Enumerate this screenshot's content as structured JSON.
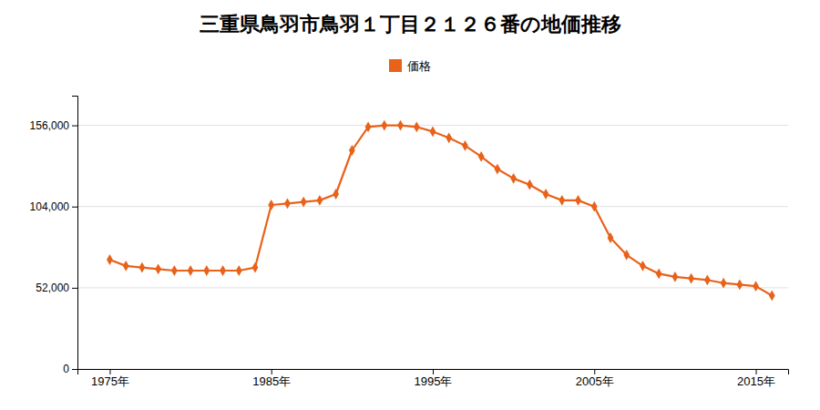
{
  "chart_data": {
    "type": "line",
    "title": "三重県鳥羽市鳥羽１丁目２１２６番の地価推移",
    "x": [
      1975,
      1976,
      1977,
      1978,
      1979,
      1980,
      1981,
      1982,
      1983,
      1984,
      1985,
      1986,
      1987,
      1988,
      1989,
      1990,
      1991,
      1992,
      1993,
      1994,
      1995,
      1996,
      1997,
      1998,
      1999,
      2000,
      2001,
      2002,
      2003,
      2004,
      2005,
      2006,
      2007,
      2008,
      2009,
      2010,
      2011,
      2012,
      2013,
      2014,
      2015,
      2016
    ],
    "series": [
      {
        "name": "価格",
        "color": "#e8621a",
        "marker": "diamond",
        "line_style": "solid",
        "values": [
          70000,
          66000,
          65000,
          64000,
          63000,
          63000,
          63000,
          63000,
          63000,
          65000,
          105000,
          106000,
          107000,
          108000,
          112000,
          140000,
          155000,
          156000,
          156000,
          155000,
          152000,
          148000,
          143000,
          136000,
          128000,
          122000,
          118000,
          112000,
          108000,
          108000,
          104000,
          84000,
          73000,
          66000,
          61000,
          59000,
          58000,
          57000,
          55000,
          54000,
          53000,
          47000
        ]
      }
    ],
    "xlim": [
      1973,
      2017
    ],
    "xticks": [
      {
        "value": 1975,
        "label": "1975年"
      },
      {
        "value": 1985,
        "label": "1985年"
      },
      {
        "value": 1995,
        "label": "1995年"
      },
      {
        "value": 2005,
        "label": "2005年"
      },
      {
        "value": 2015,
        "label": "2015年"
      }
    ],
    "ylim": [
      0,
      175000
    ],
    "yticks": [
      0,
      {
        "value": 52000,
        "label": "52,000"
      },
      {
        "value": 104000,
        "label": "104,000"
      },
      {
        "value": 156000,
        "label": "156,000"
      }
    ],
    "grid": "y",
    "legend": "top"
  }
}
